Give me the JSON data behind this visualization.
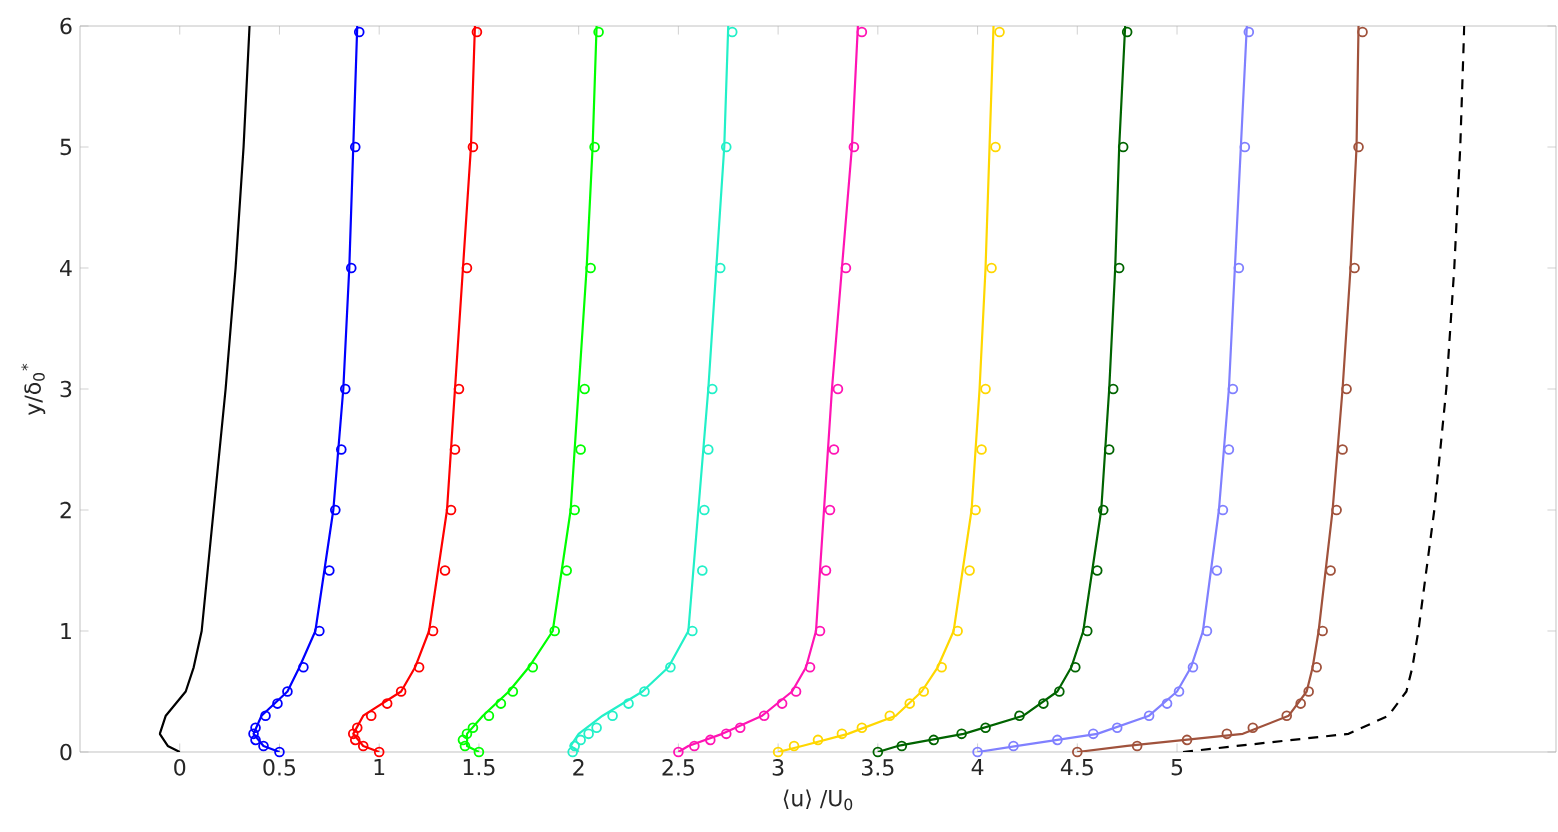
{
  "chart_data": {
    "type": "line",
    "xlabel": "⟨u⟩ /U$_{0}$",
    "ylabel": "y/δ$_{0}$$^{*}$",
    "xlim": [
      -0.5,
      6.9
    ],
    "ylim": [
      0,
      6
    ],
    "xticks": [
      0,
      0.5,
      1,
      1.5,
      2,
      2.5,
      3,
      3.5,
      4,
      4.5,
      5
    ],
    "yticks": [
      0,
      1,
      2,
      3,
      4,
      5,
      6
    ],
    "series": [
      {
        "color": "#000000",
        "line_style": "solid",
        "x": [
          0,
          -0.06,
          -0.1,
          -0.07,
          0.03,
          0.07,
          0.11,
          0.17,
          0.23,
          0.28,
          0.32,
          0.35
        ],
        "values": [
          0,
          0.05,
          0.15,
          0.3,
          0.5,
          0.7,
          1,
          2,
          3,
          4,
          5,
          6
        ]
      },
      {
        "color": "#0000ff",
        "line_style": "solid",
        "x": [
          0.5,
          0.42,
          0.37,
          0.41,
          0.54,
          0.6,
          0.68,
          0.77,
          0.82,
          0.85,
          0.87,
          0.89
        ],
        "values": [
          0,
          0.05,
          0.15,
          0.3,
          0.5,
          0.7,
          1,
          2,
          3,
          4,
          5,
          6
        ]
      },
      {
        "type": "scatter",
        "color": "#0000ff",
        "marker": "circle",
        "x": [
          0.5,
          0.42,
          0.38,
          0.37,
          0.38,
          0.43,
          0.49,
          0.54,
          0.62,
          0.7,
          0.75,
          0.78,
          0.81,
          0.83,
          0.86,
          0.88,
          0.9
        ],
        "values": [
          0,
          0.05,
          0.1,
          0.15,
          0.2,
          0.3,
          0.4,
          0.5,
          0.7,
          1,
          1.5,
          2,
          2.5,
          3,
          4,
          5,
          5.95
        ]
      },
      {
        "color": "#ff0000",
        "line_style": "solid",
        "x": [
          1.0,
          0.92,
          0.87,
          0.92,
          1.11,
          1.18,
          1.25,
          1.34,
          1.38,
          1.42,
          1.46,
          1.48
        ],
        "values": [
          0,
          0.05,
          0.15,
          0.3,
          0.5,
          0.7,
          1,
          2,
          3,
          4,
          5,
          6
        ]
      },
      {
        "type": "scatter",
        "color": "#ff0000",
        "marker": "circle",
        "x": [
          1.0,
          0.92,
          0.88,
          0.87,
          0.89,
          0.96,
          1.04,
          1.11,
          1.2,
          1.27,
          1.33,
          1.36,
          1.38,
          1.4,
          1.44,
          1.47,
          1.49
        ],
        "values": [
          0,
          0.05,
          0.1,
          0.15,
          0.2,
          0.3,
          0.4,
          0.5,
          0.7,
          1,
          1.5,
          2,
          2.5,
          3,
          4,
          5,
          5.95
        ]
      },
      {
        "color": "#00ff00",
        "line_style": "solid",
        "x": [
          1.5,
          1.44,
          1.44,
          1.52,
          1.65,
          1.75,
          1.87,
          1.96,
          2.0,
          2.04,
          2.07,
          2.09
        ],
        "values": [
          0,
          0.05,
          0.15,
          0.3,
          0.5,
          0.7,
          1,
          2,
          3,
          4,
          5,
          6
        ]
      },
      {
        "type": "scatter",
        "color": "#00ff00",
        "marker": "circle",
        "x": [
          1.5,
          1.43,
          1.42,
          1.44,
          1.47,
          1.55,
          1.61,
          1.67,
          1.77,
          1.88,
          1.94,
          1.98,
          2.01,
          2.03,
          2.06,
          2.08,
          2.1
        ],
        "values": [
          0,
          0.05,
          0.1,
          0.15,
          0.2,
          0.3,
          0.4,
          0.5,
          0.7,
          1,
          1.5,
          2,
          2.5,
          3,
          4,
          5,
          5.95
        ]
      },
      {
        "color": "#22f0c8",
        "line_style": "solid",
        "x": [
          2.0,
          1.96,
          2.0,
          2.12,
          2.32,
          2.45,
          2.55,
          2.6,
          2.65,
          2.69,
          2.73,
          2.75
        ],
        "values": [
          0,
          0.05,
          0.15,
          0.3,
          0.5,
          0.7,
          1,
          2,
          3,
          4,
          5,
          6
        ]
      },
      {
        "type": "scatter",
        "color": "#22f0c8",
        "marker": "circle",
        "x": [
          1.97,
          1.98,
          2.01,
          2.05,
          2.09,
          2.17,
          2.25,
          2.33,
          2.46,
          2.57,
          2.62,
          2.63,
          2.65,
          2.67,
          2.71,
          2.74,
          2.77
        ],
        "values": [
          0,
          0.05,
          0.1,
          0.15,
          0.2,
          0.3,
          0.4,
          0.5,
          0.7,
          1,
          1.5,
          2,
          2.5,
          3,
          4,
          5,
          5.95
        ]
      },
      {
        "color": "#ff14b4",
        "line_style": "solid",
        "x": [
          2.5,
          2.55,
          2.72,
          2.92,
          3.07,
          3.14,
          3.19,
          3.23,
          3.27,
          3.32,
          3.37,
          3.4
        ],
        "values": [
          0,
          0.05,
          0.15,
          0.3,
          0.5,
          0.7,
          1,
          2,
          3,
          4,
          5,
          6
        ]
      },
      {
        "type": "scatter",
        "color": "#ff14b4",
        "marker": "circle",
        "x": [
          2.5,
          2.58,
          2.66,
          2.74,
          2.81,
          2.93,
          3.02,
          3.09,
          3.16,
          3.21,
          3.24,
          3.26,
          3.28,
          3.3,
          3.34,
          3.38,
          3.42
        ],
        "values": [
          0,
          0.05,
          0.1,
          0.15,
          0.2,
          0.3,
          0.4,
          0.5,
          0.7,
          1,
          1.5,
          2,
          2.5,
          3,
          4,
          5,
          5.95
        ]
      },
      {
        "color": "#ffd700",
        "line_style": "solid",
        "x": [
          3.0,
          3.12,
          3.35,
          3.59,
          3.72,
          3.8,
          3.88,
          3.97,
          4.01,
          4.04,
          4.06,
          4.08
        ],
        "values": [
          0,
          0.05,
          0.15,
          0.3,
          0.5,
          0.7,
          1,
          2,
          3,
          4,
          5,
          6
        ]
      },
      {
        "type": "scatter",
        "color": "#ffd700",
        "marker": "circle",
        "x": [
          3.0,
          3.08,
          3.2,
          3.32,
          3.42,
          3.56,
          3.66,
          3.73,
          3.82,
          3.9,
          3.96,
          3.99,
          4.02,
          4.04,
          4.07,
          4.09,
          4.11
        ],
        "values": [
          0,
          0.05,
          0.1,
          0.15,
          0.2,
          0.3,
          0.4,
          0.5,
          0.7,
          1,
          1.5,
          2,
          2.5,
          3,
          4,
          5,
          5.95
        ]
      },
      {
        "color": "#006400",
        "line_style": "solid",
        "x": [
          3.5,
          3.6,
          3.93,
          4.23,
          4.4,
          4.47,
          4.53,
          4.62,
          4.66,
          4.69,
          4.71,
          4.74
        ],
        "values": [
          0,
          0.05,
          0.15,
          0.3,
          0.5,
          0.7,
          1,
          2,
          3,
          4,
          5,
          6
        ]
      },
      {
        "type": "scatter",
        "color": "#006400",
        "marker": "circle",
        "x": [
          3.5,
          3.62,
          3.78,
          3.92,
          4.04,
          4.21,
          4.33,
          4.41,
          4.49,
          4.55,
          4.6,
          4.63,
          4.66,
          4.68,
          4.71,
          4.73,
          4.75
        ],
        "values": [
          0,
          0.05,
          0.1,
          0.15,
          0.2,
          0.3,
          0.4,
          0.5,
          0.7,
          1,
          1.5,
          2,
          2.5,
          3,
          4,
          5,
          5.95
        ]
      },
      {
        "color": "#8080ff",
        "line_style": "solid",
        "x": [
          4.0,
          4.2,
          4.6,
          4.86,
          5.0,
          5.07,
          5.13,
          5.21,
          5.26,
          5.29,
          5.32,
          5.35
        ],
        "values": [
          0,
          0.05,
          0.15,
          0.3,
          0.5,
          0.7,
          1,
          2,
          3,
          4,
          5,
          6
        ]
      },
      {
        "type": "scatter",
        "color": "#8080ff",
        "marker": "circle",
        "x": [
          4.0,
          4.18,
          4.4,
          4.58,
          4.7,
          4.86,
          4.95,
          5.01,
          5.08,
          5.15,
          5.2,
          5.23,
          5.26,
          5.28,
          5.31,
          5.34,
          5.36
        ],
        "values": [
          0,
          0.05,
          0.1,
          0.15,
          0.2,
          0.3,
          0.4,
          0.5,
          0.7,
          1,
          1.5,
          2,
          2.5,
          3,
          4,
          5,
          5.95
        ]
      },
      {
        "color": "#a0523c",
        "line_style": "solid",
        "x": [
          4.5,
          4.75,
          5.33,
          5.56,
          5.65,
          5.68,
          5.71,
          5.78,
          5.83,
          5.87,
          5.9,
          5.91
        ],
        "values": [
          0,
          0.05,
          0.15,
          0.3,
          0.5,
          0.7,
          1,
          2,
          3,
          4,
          5,
          6
        ]
      },
      {
        "type": "scatter",
        "color": "#a0523c",
        "marker": "circle",
        "x": [
          4.5,
          4.8,
          5.05,
          5.25,
          5.38,
          5.55,
          5.62,
          5.66,
          5.7,
          5.73,
          5.77,
          5.8,
          5.83,
          5.85,
          5.89,
          5.91,
          5.93
        ],
        "values": [
          0,
          0.05,
          0.1,
          0.15,
          0.2,
          0.3,
          0.4,
          0.5,
          0.7,
          1,
          1.5,
          2,
          2.5,
          3,
          4,
          5,
          5.95
        ]
      },
      {
        "color": "#000000",
        "line_style": "dashed",
        "x": [
          5.03,
          5.3,
          5.86,
          6.06,
          6.15,
          6.18,
          6.21,
          6.29,
          6.35,
          6.39,
          6.42,
          6.44
        ],
        "values": [
          0,
          0.05,
          0.15,
          0.3,
          0.5,
          0.7,
          1,
          2,
          3,
          4,
          5,
          6
        ]
      }
    ]
  }
}
